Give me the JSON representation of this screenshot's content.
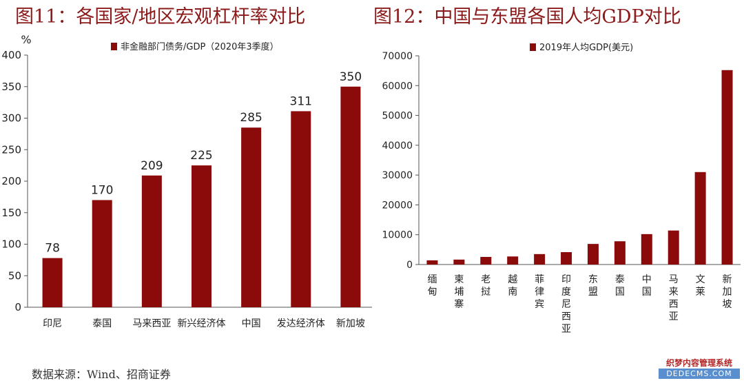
{
  "titles": {
    "left": "图11：各国家/地区宏观杠杆率对比",
    "right": "图12：中国与东盟各国人均GDP对比"
  },
  "source": "数据来源：Wind、招商证券",
  "watermark": {
    "line1": "织梦内容管理系统",
    "line2": "DEDECMS.COM"
  },
  "colors": {
    "bar": "#8b0a0a",
    "axis": "#555555",
    "title": "#8b1a1a"
  },
  "chart_data": [
    {
      "type": "bar",
      "title": "",
      "ylabel": "%",
      "legend": "非金融部门债务/GDP（2020年3季度）",
      "legend_position": "top",
      "categories": [
        "印尼",
        "泰国",
        "马来西亚",
        "新兴经济体",
        "中国",
        "发达经济体",
        "新加坡"
      ],
      "values": [
        78,
        170,
        209,
        225,
        285,
        311,
        350
      ],
      "data_labels": [
        "78",
        "170",
        "209",
        "225",
        "285",
        "311",
        "350"
      ],
      "ylim": [
        0,
        400
      ],
      "yticks": [
        "0",
        "50",
        "100",
        "150",
        "200",
        "250",
        "300",
        "350",
        "400"
      ],
      "grid": false
    },
    {
      "type": "bar",
      "title": "",
      "ylabel": "",
      "legend": "2019年人均GDP(美元)",
      "legend_position": "top",
      "categories": [
        "缅甸",
        "柬埔寨",
        "老挝",
        "越南",
        "菲律宾",
        "印度尼西亚",
        "东盟",
        "泰国",
        "中国",
        "马来西亚",
        "文莱",
        "新加坡"
      ],
      "values": [
        1400,
        1650,
        2550,
        2700,
        3500,
        4150,
        6900,
        7800,
        10200,
        11400,
        31000,
        65200
      ],
      "ylim": [
        0,
        70000
      ],
      "yticks": [
        "0",
        "10000",
        "20000",
        "30000",
        "40000",
        "50000",
        "60000",
        "70000"
      ],
      "grid": false
    }
  ]
}
